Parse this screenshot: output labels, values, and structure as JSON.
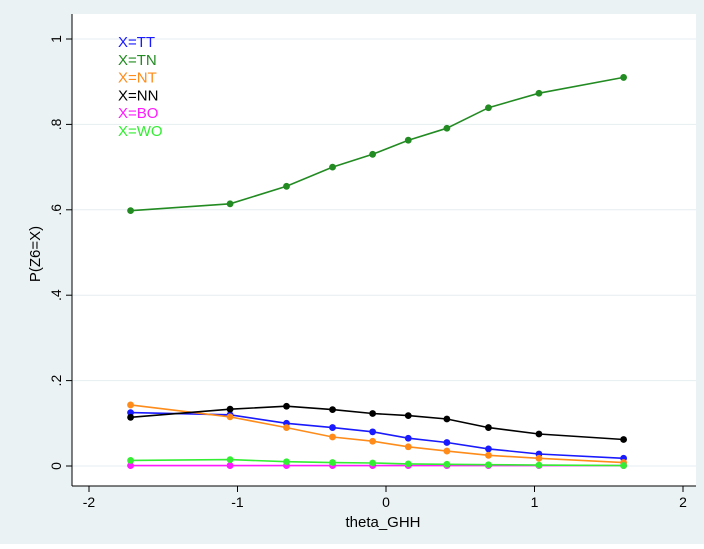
{
  "chart_data": {
    "type": "line",
    "xlabel": "theta_GHH",
    "ylabel": "P(Z6=X)",
    "xlim": [
      -2,
      2
    ],
    "ylim": [
      0,
      1
    ],
    "xticks": [
      "-2",
      "-1",
      "0",
      "1",
      "2"
    ],
    "xtick_values": [
      -2,
      -1,
      0,
      1,
      2
    ],
    "yticks": [
      "0",
      ".2",
      ".4",
      ".6",
      ".8",
      "1"
    ],
    "ytick_values": [
      0,
      0.2,
      0.4,
      0.6,
      0.8,
      1
    ],
    "grid": true,
    "legend_position": "top-left",
    "x": [
      -1.72,
      -1.05,
      -0.67,
      -0.36,
      -0.09,
      0.15,
      0.41,
      0.69,
      1.03,
      1.6
    ],
    "series": [
      {
        "name": "X=TT",
        "color": "#1a1aff",
        "values": [
          0.125,
          0.12,
          0.1,
          0.09,
          0.08,
          0.065,
          0.055,
          0.04,
          0.028,
          0.018
        ]
      },
      {
        "name": "X=TN",
        "color": "#228b22",
        "values": [
          0.598,
          0.614,
          0.655,
          0.7,
          0.73,
          0.763,
          0.791,
          0.839,
          0.873,
          0.91
        ]
      },
      {
        "name": "X=NT",
        "color": "#ff8c1a",
        "values": [
          0.143,
          0.115,
          0.09,
          0.068,
          0.058,
          0.045,
          0.035,
          0.025,
          0.018,
          0.008
        ]
      },
      {
        "name": "X=NN",
        "color": "#000000",
        "values": [
          0.114,
          0.133,
          0.14,
          0.132,
          0.123,
          0.118,
          0.11,
          0.09,
          0.075,
          0.062
        ]
      },
      {
        "name": "X=BO",
        "color": "#ff1aff",
        "values": [
          0.001,
          0.001,
          0.001,
          0.001,
          0.001,
          0.001,
          0.001,
          0.001,
          0.001,
          0.001
        ]
      },
      {
        "name": "X=WO",
        "color": "#33ee33",
        "values": [
          0.013,
          0.015,
          0.01,
          0.008,
          0.007,
          0.005,
          0.004,
          0.003,
          0.002,
          0.001
        ]
      }
    ]
  }
}
